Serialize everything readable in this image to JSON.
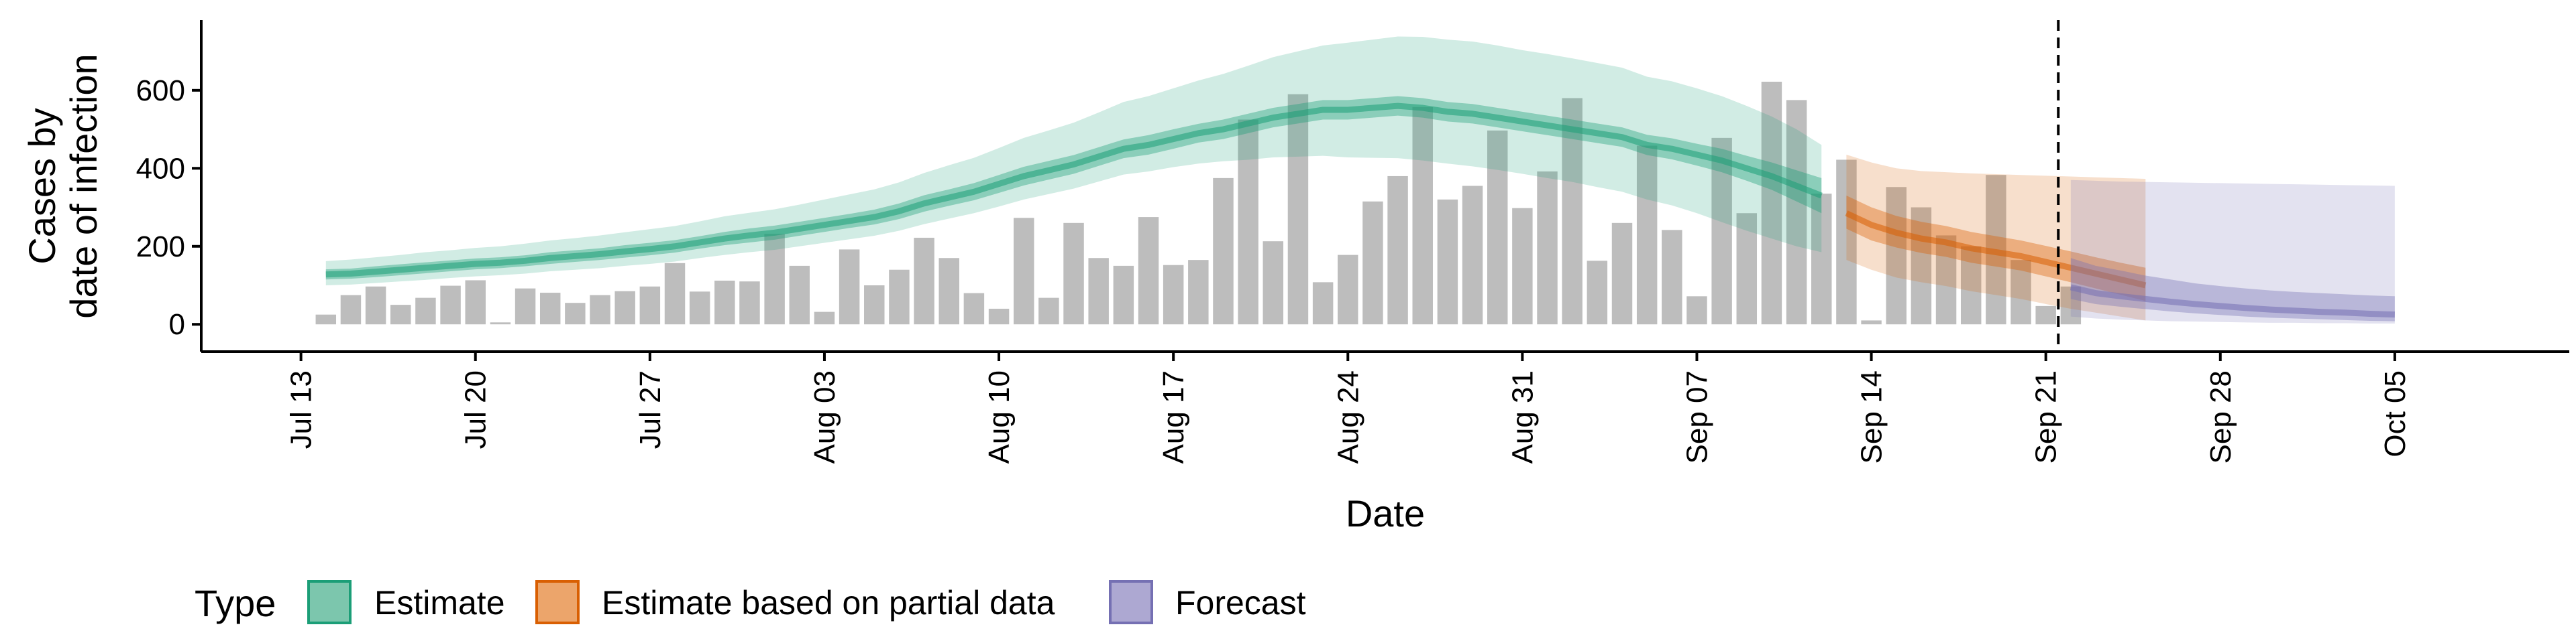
{
  "chart_data": {
    "type": "bar+area",
    "xlabel": "Date",
    "ylabel_lines": [
      "Cases by",
      "date of infection"
    ],
    "x_tick_labels": [
      "Jul 13",
      "Jul 20",
      "Jul 27",
      "Aug 03",
      "Aug 10",
      "Aug 17",
      "Aug 24",
      "Aug 31",
      "Sep 07",
      "Sep 14",
      "Sep 21",
      "Sep 28",
      "Oct 05"
    ],
    "x_tick_dates": [
      "2020-07-13",
      "2020-07-20",
      "2020-07-27",
      "2020-08-03",
      "2020-08-10",
      "2020-08-17",
      "2020-08-24",
      "2020-08-31",
      "2020-09-07",
      "2020-09-14",
      "2020-09-21",
      "2020-09-28",
      "2020-10-05"
    ],
    "xlim": [
      "2020-07-09",
      "2020-10-12"
    ],
    "y_ticks": [
      0,
      200,
      400,
      600
    ],
    "y_tick_labels": [
      "0",
      "200",
      "400",
      "600"
    ],
    "ylim": [
      -70,
      780
    ],
    "reference_line_date": "2020-09-21",
    "legend": {
      "title": "Type",
      "position": "bottom",
      "entries": [
        {
          "label": "Estimate",
          "fill": "#7cc6ad",
          "stroke": "#1b9e77"
        },
        {
          "label": "Estimate based on partial data",
          "fill": "#eca56b",
          "stroke": "#d95f02"
        },
        {
          "label": "Forecast",
          "fill": "#ada8d2",
          "stroke": "#7570b3"
        }
      ]
    },
    "colors": {
      "bars": "#bdbdbd",
      "estimate": "#1b9e77",
      "partial": "#d95f02",
      "forecast": "#7570b3"
    },
    "reported_cases": {
      "start_date": "2020-07-14",
      "values": [
        25,
        75,
        97,
        50,
        68,
        99,
        113,
        5,
        92,
        81,
        55,
        75,
        85,
        97,
        157,
        84,
        112,
        110,
        232,
        150,
        32,
        192,
        100,
        140,
        222,
        170,
        80,
        40,
        273,
        68,
        260,
        170,
        150,
        275,
        152,
        165,
        375,
        525,
        213,
        590,
        108,
        178,
        315,
        380,
        557,
        320,
        355,
        497,
        298,
        392,
        580,
        163,
        260,
        458,
        242,
        72,
        478,
        285,
        622,
        575,
        335,
        422,
        10,
        352,
        300,
        228,
        200,
        383,
        165,
        47,
        97
      ]
    },
    "series": [
      {
        "name": "Estimate",
        "start_date": "2020-07-14",
        "median": [
          128,
          130,
          135,
          140,
          145,
          150,
          155,
          158,
          163,
          170,
          175,
          180,
          187,
          193,
          200,
          210,
          220,
          228,
          235,
          245,
          255,
          265,
          275,
          290,
          310,
          325,
          340,
          360,
          380,
          395,
          410,
          430,
          450,
          460,
          475,
          490,
          500,
          515,
          530,
          540,
          550,
          550,
          555,
          560,
          555,
          545,
          540,
          530,
          520,
          510,
          500,
          490,
          480,
          460,
          450,
          435,
          420,
          400,
          380,
          355,
          330
        ],
        "inner_lower": [
          115,
          117,
          121,
          126,
          131,
          136,
          141,
          144,
          149,
          155,
          160,
          165,
          171,
          177,
          184,
          194,
          203,
          210,
          217,
          227,
          237,
          247,
          256,
          270,
          289,
          304,
          318,
          337,
          356,
          371,
          386,
          406,
          426,
          435,
          450,
          466,
          475,
          490,
          505,
          515,
          525,
          525,
          530,
          535,
          530,
          520,
          515,
          505,
          495,
          485,
          475,
          465,
          455,
          434,
          423,
          407,
          390,
          368,
          345,
          315,
          285
        ],
        "inner_upper": [
          141,
          143,
          149,
          154,
          159,
          164,
          169,
          172,
          177,
          185,
          190,
          195,
          203,
          209,
          216,
          226,
          237,
          246,
          253,
          263,
          273,
          283,
          294,
          310,
          331,
          346,
          362,
          383,
          404,
          419,
          434,
          454,
          474,
          485,
          500,
          514,
          525,
          540,
          555,
          565,
          575,
          575,
          580,
          585,
          580,
          570,
          565,
          555,
          545,
          535,
          525,
          515,
          505,
          486,
          477,
          463,
          450,
          432,
          415,
          395,
          375
        ],
        "outer_lower": [
          100,
          102,
          106,
          110,
          114,
          119,
          123,
          126,
          130,
          136,
          140,
          144,
          150,
          155,
          161,
          170,
          178,
          185,
          191,
          200,
          209,
          218,
          227,
          240,
          257,
          271,
          285,
          302,
          320,
          334,
          348,
          366,
          384,
          392,
          403,
          412,
          418,
          422,
          428,
          430,
          432,
          428,
          427,
          426,
          420,
          412,
          405,
          396,
          386,
          375,
          365,
          352,
          340,
          320,
          305,
          285,
          262,
          240,
          220,
          200,
          185
        ],
        "outer_upper": [
          162,
          166,
          172,
          178,
          185,
          190,
          196,
          200,
          207,
          215,
          221,
          228,
          236,
          244,
          252,
          264,
          277,
          286,
          295,
          307,
          320,
          333,
          346,
          364,
          388,
          408,
          427,
          452,
          478,
          497,
          517,
          543,
          570,
          585,
          605,
          625,
          642,
          663,
          685,
          700,
          715,
          722,
          730,
          738,
          737,
          730,
          725,
          715,
          703,
          693,
          682,
          670,
          658,
          635,
          623,
          605,
          585,
          560,
          533,
          500,
          460
        ]
      },
      {
        "name": "Estimate based on partial data",
        "start_date": "2020-09-13",
        "median": [
          285,
          255,
          235,
          220,
          210,
          195,
          185,
          175,
          160,
          145,
          130,
          115,
          100
        ],
        "inner_lower": [
          245,
          215,
          197,
          183,
          173,
          158,
          148,
          138,
          123,
          108,
          92,
          76,
          60
        ],
        "inner_upper": [
          330,
          300,
          278,
          263,
          252,
          237,
          226,
          215,
          201,
          187,
          172,
          158,
          145
        ],
        "outer_lower": [
          165,
          140,
          120,
          108,
          98,
          85,
          75,
          65,
          52,
          40,
          30,
          20,
          10
        ],
        "outer_upper": [
          435,
          415,
          400,
          393,
          390,
          387,
          385,
          383,
          381,
          379,
          377,
          375,
          373
        ]
      },
      {
        "name": "Forecast",
        "start_date": "2020-09-22",
        "median": [
          95,
          80,
          72,
          65,
          58,
          52,
          47,
          42,
          38,
          35,
          32,
          30,
          27,
          25
        ],
        "inner_lower": [
          65,
          52,
          45,
          39,
          33,
          28,
          24,
          20,
          17,
          15,
          13,
          11,
          9,
          8
        ],
        "inner_upper": [
          170,
          150,
          138,
          125,
          115,
          105,
          98,
          92,
          87,
          83,
          80,
          77,
          74,
          72
        ],
        "outer_lower": [
          20,
          15,
          12,
          10,
          8,
          7,
          6,
          5,
          4,
          4,
          3,
          3,
          2,
          2
        ],
        "outer_upper": [
          370,
          368,
          366,
          365,
          364,
          363,
          362,
          361,
          360,
          359,
          358,
          357,
          356,
          355
        ]
      }
    ]
  }
}
